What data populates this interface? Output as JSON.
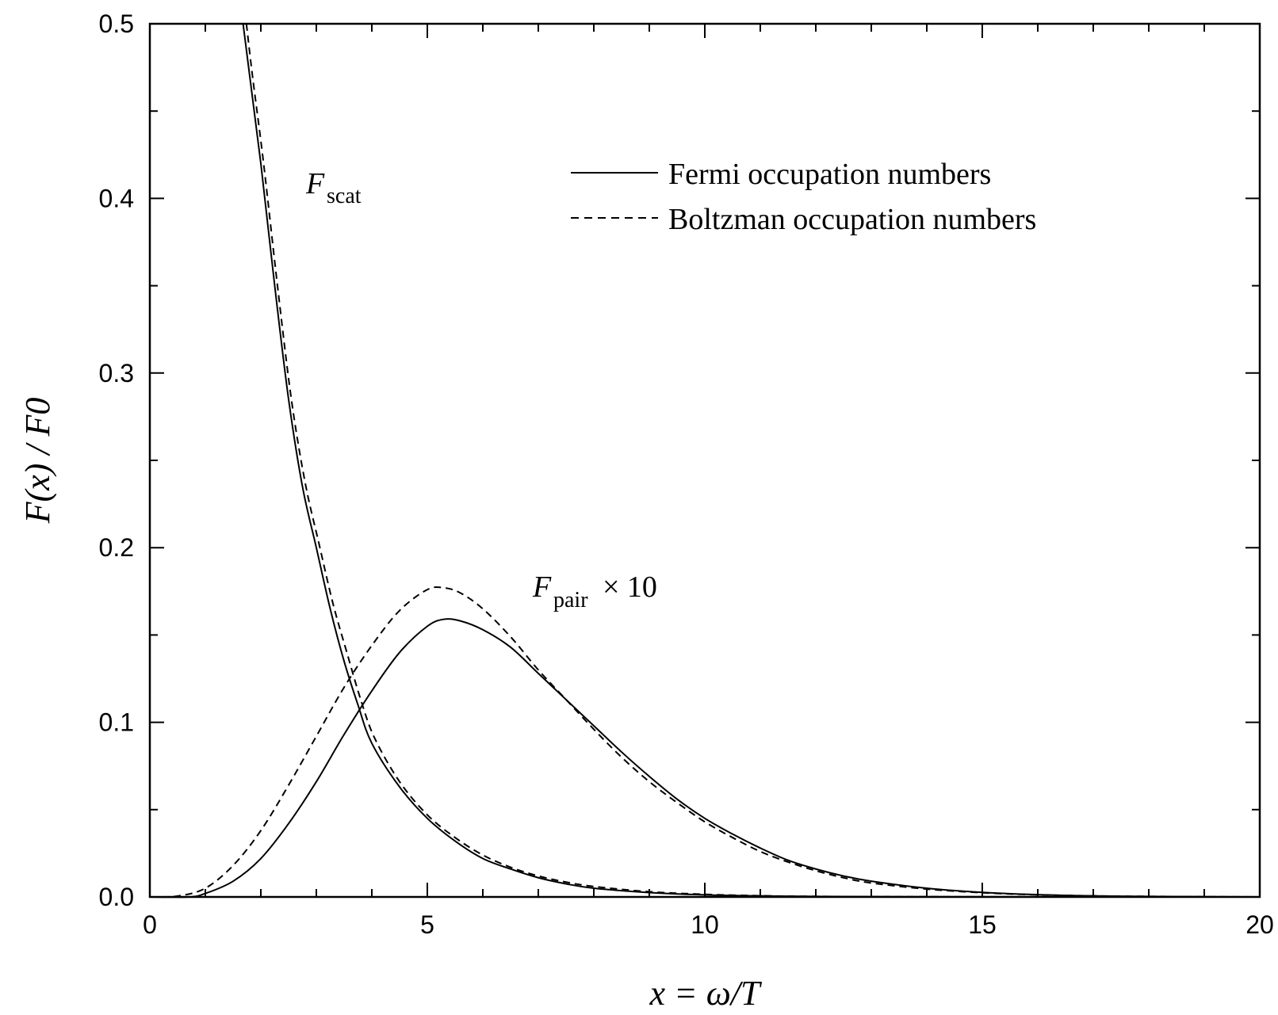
{
  "chart_data": {
    "type": "line",
    "xlabel": "x = ω/T",
    "ylabel": "F(x) / F0",
    "xlim": [
      0,
      20
    ],
    "ylim": [
      0,
      0.5
    ],
    "x_ticks": [
      "0",
      "5",
      "10",
      "15",
      "20"
    ],
    "y_ticks": [
      "0.0",
      "0.1",
      "0.2",
      "0.3",
      "0.4",
      "0.5"
    ],
    "grid": false,
    "legend_position": "top-right",
    "legend": [
      {
        "label": "Fermi occupation numbers",
        "style": "solid"
      },
      {
        "label": "Boltzman occupation numbers",
        "style": "dashed"
      }
    ],
    "annotations": [
      {
        "text": "F",
        "sub": "scat",
        "at": [
          2.8,
          0.405
        ]
      },
      {
        "text": "F",
        "sub": "pair",
        "suffix": "× 10",
        "at": [
          6.9,
          0.175
        ]
      }
    ],
    "series": [
      {
        "style": "solid",
        "values": [
          [
            1.68,
            0.5
          ],
          [
            1.8,
            0.47
          ],
          [
            2.0,
            0.42
          ],
          [
            2.25,
            0.35
          ],
          [
            2.5,
            0.285
          ],
          [
            2.75,
            0.235
          ],
          [
            3.0,
            0.2
          ],
          [
            3.25,
            0.165
          ],
          [
            3.5,
            0.135
          ],
          [
            3.75,
            0.11
          ],
          [
            4.0,
            0.088
          ],
          [
            4.5,
            0.063
          ],
          [
            5.0,
            0.045
          ],
          [
            5.5,
            0.032
          ],
          [
            6.0,
            0.022
          ],
          [
            6.5,
            0.016
          ],
          [
            7.0,
            0.011
          ],
          [
            7.5,
            0.0075
          ],
          [
            8.0,
            0.005
          ],
          [
            9.0,
            0.0025
          ],
          [
            10.0,
            0.0012
          ],
          [
            11.0,
            0.0006
          ],
          [
            12.0,
            0.0003
          ],
          [
            14.0,
            0.0001
          ],
          [
            17.0,
            0.0
          ],
          [
            20.0,
            0.0
          ]
        ]
      },
      {
        "style": "dashed",
        "values": [
          [
            1.74,
            0.5
          ],
          [
            1.85,
            0.47
          ],
          [
            2.05,
            0.42
          ],
          [
            2.3,
            0.35
          ],
          [
            2.55,
            0.285
          ],
          [
            2.8,
            0.237
          ],
          [
            3.05,
            0.202
          ],
          [
            3.3,
            0.168
          ],
          [
            3.55,
            0.14
          ],
          [
            3.8,
            0.113
          ],
          [
            4.05,
            0.091
          ],
          [
            4.5,
            0.066
          ],
          [
            5.0,
            0.047
          ],
          [
            5.5,
            0.034
          ],
          [
            6.0,
            0.024
          ],
          [
            6.5,
            0.017
          ],
          [
            7.0,
            0.012
          ],
          [
            7.5,
            0.0085
          ],
          [
            8.0,
            0.006
          ],
          [
            9.0,
            0.003
          ],
          [
            10.0,
            0.0015
          ],
          [
            11.0,
            0.0007
          ],
          [
            12.0,
            0.0003
          ],
          [
            14.0,
            0.0001
          ],
          [
            17.0,
            0.0
          ],
          [
            20.0,
            0.0
          ]
        ]
      },
      {
        "style": "solid",
        "values": [
          [
            0.0,
            0.0
          ],
          [
            0.7,
            0.0
          ],
          [
            1.0,
            0.002
          ],
          [
            1.5,
            0.009
          ],
          [
            2.0,
            0.022
          ],
          [
            2.5,
            0.042
          ],
          [
            3.0,
            0.066
          ],
          [
            3.5,
            0.093
          ],
          [
            4.0,
            0.118
          ],
          [
            4.5,
            0.14
          ],
          [
            5.0,
            0.155
          ],
          [
            5.3,
            0.159
          ],
          [
            5.6,
            0.158
          ],
          [
            6.0,
            0.153
          ],
          [
            6.5,
            0.143
          ],
          [
            7.0,
            0.128
          ],
          [
            7.5,
            0.113
          ],
          [
            8.0,
            0.098
          ],
          [
            8.5,
            0.083
          ],
          [
            9.0,
            0.069
          ],
          [
            9.5,
            0.056
          ],
          [
            10.0,
            0.045
          ],
          [
            10.5,
            0.036
          ],
          [
            11.0,
            0.028
          ],
          [
            11.5,
            0.021
          ],
          [
            12.0,
            0.016
          ],
          [
            12.5,
            0.012
          ],
          [
            13.0,
            0.009
          ],
          [
            14.0,
            0.005
          ],
          [
            15.0,
            0.0026
          ],
          [
            16.0,
            0.0013
          ],
          [
            17.0,
            0.0006
          ],
          [
            18.0,
            0.0003
          ],
          [
            20.0,
            0.0
          ]
        ]
      },
      {
        "style": "dashed",
        "values": [
          [
            0.0,
            0.0
          ],
          [
            0.5,
            0.0005
          ],
          [
            1.0,
            0.005
          ],
          [
            1.5,
            0.018
          ],
          [
            2.0,
            0.038
          ],
          [
            2.5,
            0.064
          ],
          [
            3.0,
            0.092
          ],
          [
            3.5,
            0.12
          ],
          [
            4.0,
            0.144
          ],
          [
            4.5,
            0.164
          ],
          [
            5.0,
            0.176
          ],
          [
            5.3,
            0.177
          ],
          [
            5.6,
            0.174
          ],
          [
            6.0,
            0.165
          ],
          [
            6.5,
            0.149
          ],
          [
            7.0,
            0.13
          ],
          [
            7.5,
            0.113
          ],
          [
            8.0,
            0.096
          ],
          [
            8.5,
            0.08
          ],
          [
            9.0,
            0.066
          ],
          [
            9.5,
            0.054
          ],
          [
            10.0,
            0.043
          ],
          [
            10.5,
            0.034
          ],
          [
            11.0,
            0.026
          ],
          [
            11.5,
            0.02
          ],
          [
            12.0,
            0.015
          ],
          [
            12.5,
            0.011
          ],
          [
            13.0,
            0.008
          ],
          [
            14.0,
            0.0045
          ],
          [
            15.0,
            0.0024
          ],
          [
            16.0,
            0.0012
          ],
          [
            17.0,
            0.0006
          ],
          [
            18.0,
            0.0003
          ],
          [
            20.0,
            0.0
          ]
        ]
      }
    ]
  }
}
